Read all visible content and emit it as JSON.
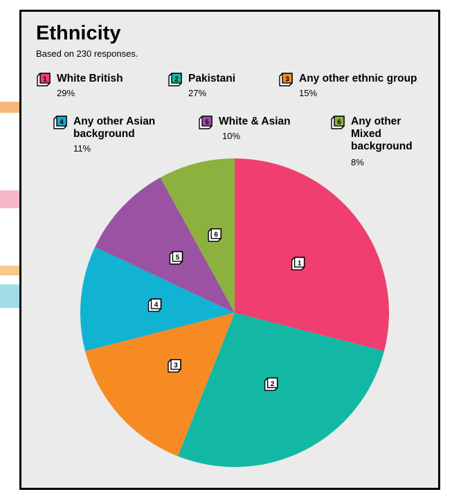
{
  "chart_data": {
    "type": "pie",
    "title": "Ethnicity",
    "subtitle": "Based on 230 responses.",
    "slices": [
      {
        "id": "1",
        "label": "White British",
        "pct_label": "29%",
        "value": 29,
        "color": "#f03e70"
      },
      {
        "id": "2",
        "label": "Pakistani",
        "pct_label": "27%",
        "value": 27,
        "color": "#13b8a4"
      },
      {
        "id": "3",
        "label": "Any other ethnic group",
        "pct_label": "15%",
        "value": 15,
        "color": "#f68b24"
      },
      {
        "id": "4",
        "label": "Any other Asian background",
        "pct_label": "11%",
        "value": 11,
        "color": "#12b2d3"
      },
      {
        "id": "5",
        "label": "White & Asian",
        "pct_label": "10%",
        "value": 10,
        "color": "#9b52a3"
      },
      {
        "id": "6",
        "label": "Any other Mixed background",
        "pct_label": "8%",
        "value": 8,
        "color": "#8db13f"
      }
    ],
    "legend": "top",
    "start_angle": "12 o'clock",
    "direction": "clockwise"
  }
}
